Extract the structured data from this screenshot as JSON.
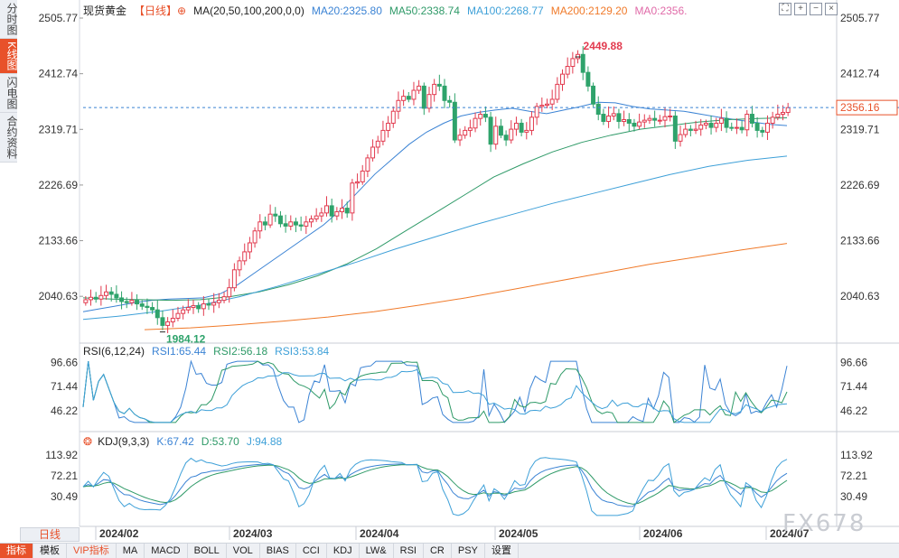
{
  "side_tabs": [
    {
      "label": "分时图",
      "active": false
    },
    {
      "label": "K线图",
      "active": true
    },
    {
      "label": "闪电图",
      "active": false
    },
    {
      "label": "合约资料",
      "active": false
    }
  ],
  "main_legend": {
    "title": "现货黄金",
    "period": "【日线】",
    "settings_icon": "⊕",
    "ma_params": "MA(20,50,100,200,0,0)",
    "ma20": "MA20:2325.80",
    "ma50": "MA50:2338.74",
    "ma100": "MA100:2268.77",
    "ma200": "MA200:2129.20",
    "ma0": "MA0:2356."
  },
  "rsi_legend": {
    "label": "RSI(6,12,24)",
    "rsi1": "RSI1:65.44",
    "rsi2": "RSI2:56.18",
    "rsi3": "RSI3:53.84"
  },
  "kdj_legend": {
    "label": "KDJ(9,3,3)",
    "k": "K:67.42",
    "d": "D:53.70",
    "j": "J:94.88"
  },
  "price_axis": [
    "2505.77",
    "2412.74",
    "2319.71",
    "2226.69",
    "2133.66",
    "2040.63"
  ],
  "price_range": [
    1970,
    2505.77
  ],
  "rsi_axis": [
    "96.66",
    "71.44",
    "46.22"
  ],
  "rsi_range": [
    32,
    100
  ],
  "kdj_axis": [
    "113.92",
    "72.21",
    "30.49"
  ],
  "kdj_range": [
    -10,
    125
  ],
  "current_price": "2356.16",
  "current_price_value": 2356.16,
  "high_marker": "2449.88",
  "low_marker": "1984.12",
  "date_labels": [
    "2024/02",
    "2024/03",
    "2024/04",
    "2024/05",
    "2024/06",
    "2024/07"
  ],
  "period_tab": "日线",
  "toolbar_icons": [
    "expand-icon",
    "zoom-in-icon",
    "zoom-out-icon",
    "close-icon"
  ],
  "bottom_bar": [
    "指标",
    "模板",
    "VIP指标",
    "MA",
    "MACD",
    "BOLL",
    "VOL",
    "BIAS",
    "CCI",
    "KDJ",
    "LW&",
    "RSI",
    "CR",
    "PSY",
    "设置"
  ],
  "watermark": "FX678",
  "colors": {
    "up": "#e23b4f",
    "down": "#2ea36b",
    "ma20": "#3b83d4",
    "ma50": "#2f9a68",
    "ma100": "#3ea0d8",
    "ma200": "#f07a2a",
    "accent": "#e8512a",
    "grid": "#e4e7ec"
  },
  "chart_data": {
    "type": "candlestick",
    "title": "现货黄金 日线",
    "candles_close": [
      2035,
      2039,
      2036,
      2042,
      2048,
      2044,
      2038,
      2032,
      2030,
      2034,
      2028,
      2024,
      2022,
      2018,
      2005,
      1992,
      1998,
      2004,
      2012,
      2018,
      2022,
      2025,
      2020,
      2028,
      2026,
      2030,
      2034,
      2040,
      2055,
      2085,
      2100,
      2115,
      2130,
      2150,
      2165,
      2160,
      2178,
      2175,
      2162,
      2158,
      2165,
      2160,
      2158,
      2165,
      2170,
      2175,
      2180,
      2192,
      2175,
      2182,
      2188,
      2180,
      2230,
      2232,
      2250,
      2272,
      2290,
      2300,
      2318,
      2330,
      2350,
      2368,
      2375,
      2370,
      2385,
      2392,
      2355,
      2378,
      2395,
      2392,
      2368,
      2365,
      2302,
      2310,
      2318,
      2322,
      2338,
      2345,
      2340,
      2295,
      2325,
      2310,
      2302,
      2320,
      2330,
      2315,
      2318,
      2340,
      2358,
      2360,
      2362,
      2370,
      2395,
      2412,
      2425,
      2438,
      2445,
      2415,
      2392,
      2362,
      2345,
      2333,
      2342,
      2346,
      2333,
      2336,
      2330,
      2325,
      2332,
      2335,
      2338,
      2335,
      2335,
      2341,
      2342,
      2300,
      2311,
      2320,
      2318,
      2320,
      2327,
      2330,
      2323,
      2330,
      2338,
      2323,
      2322,
      2323,
      2319,
      2345,
      2330,
      2318,
      2315,
      2330,
      2340,
      2345,
      2348,
      2356
    ],
    "candles_open": [
      2030,
      2035,
      2039,
      2036,
      2042,
      2048,
      2044,
      2038,
      2032,
      2030,
      2034,
      2028,
      2024,
      2022,
      2018,
      2005,
      1992,
      1998,
      2004,
      2012,
      2018,
      2022,
      2025,
      2020,
      2028,
      2026,
      2030,
      2034,
      2040,
      2055,
      2085,
      2100,
      2115,
      2130,
      2150,
      2165,
      2160,
      2178,
      2175,
      2162,
      2158,
      2165,
      2160,
      2158,
      2165,
      2170,
      2175,
      2180,
      2192,
      2175,
      2182,
      2188,
      2180,
      2230,
      2232,
      2250,
      2272,
      2290,
      2300,
      2318,
      2330,
      2350,
      2368,
      2375,
      2370,
      2385,
      2392,
      2355,
      2378,
      2395,
      2392,
      2368,
      2365,
      2302,
      2310,
      2318,
      2322,
      2338,
      2345,
      2340,
      2295,
      2325,
      2310,
      2302,
      2320,
      2330,
      2315,
      2318,
      2340,
      2358,
      2360,
      2362,
      2370,
      2395,
      2412,
      2425,
      2438,
      2445,
      2415,
      2392,
      2362,
      2345,
      2333,
      2342,
      2346,
      2333,
      2336,
      2330,
      2325,
      2332,
      2335,
      2338,
      2335,
      2335,
      2341,
      2342,
      2300,
      2311,
      2320,
      2318,
      2320,
      2327,
      2330,
      2323,
      2330,
      2338,
      2323,
      2322,
      2323,
      2319,
      2345,
      2330,
      2318,
      2315,
      2330,
      2340,
      2345,
      2348
    ],
    "ma20": [
      2015,
      2020,
      2025,
      2030,
      2034,
      2036,
      2037,
      2038,
      2045,
      2060,
      2080,
      2100,
      2120,
      2140,
      2160,
      2185,
      2215,
      2245,
      2270,
      2295,
      2315,
      2330,
      2342,
      2348,
      2352,
      2355,
      2350,
      2346,
      2352,
      2358,
      2365,
      2364,
      2358,
      2354,
      2352,
      2350,
      2345,
      2340,
      2336,
      2332,
      2328,
      2326
    ],
    "ma50": [
      2038,
      2036,
      2035,
      2034,
      2035,
      2040,
      2048,
      2060,
      2075,
      2095,
      2120,
      2150,
      2180,
      2210,
      2240,
      2262,
      2282,
      2298,
      2310,
      2320,
      2326,
      2332,
      2336,
      2338,
      2339
    ],
    "ma100": [
      2002,
      2008,
      2016,
      2026,
      2040,
      2058,
      2078,
      2098,
      2120,
      2140,
      2160,
      2178,
      2196,
      2212,
      2228,
      2244,
      2258,
      2268,
      2275
    ],
    "ma200": [
      1985,
      1988,
      1993,
      1999,
      2006,
      2015,
      2026,
      2038,
      2052,
      2066,
      2080,
      2094,
      2106,
      2118,
      2129
    ],
    "high": 2449.88,
    "low": 1984.12,
    "last": 2356.16,
    "x_ticks": [
      "2024/02",
      "2024/03",
      "2024/04",
      "2024/05",
      "2024/06",
      "2024/07"
    ]
  }
}
